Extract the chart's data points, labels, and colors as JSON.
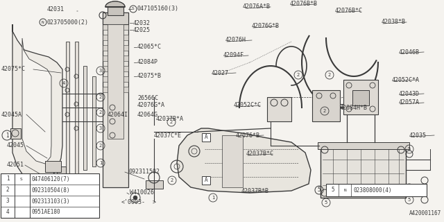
{
  "bg_color": "#f5f3ef",
  "line_color": "#3a3a3a",
  "diagram_id": "A420001167",
  "legend_items": [
    [
      "1",
      "S",
      "047406120(7)"
    ],
    [
      "2",
      "",
      "092310504(8)"
    ],
    [
      "3",
      "",
      "092313103(3)"
    ],
    [
      "4",
      "",
      "0951AE180"
    ]
  ],
  "legend2": [
    "5",
    "N",
    "023808000(4)"
  ],
  "font_size": 6.0
}
